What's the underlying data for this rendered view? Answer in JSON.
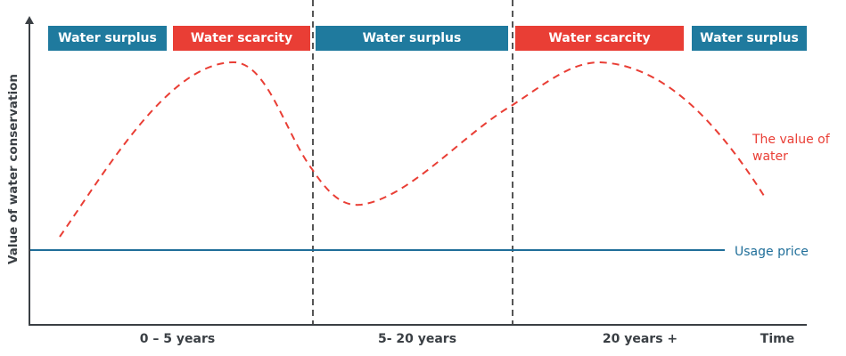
{
  "diagram": {
    "y_axis_label": "Value of water conservation",
    "x_axis_label": "Time",
    "periods": [
      "0 – 5 years",
      "5- 20 years",
      "20 years +"
    ],
    "banners": [
      {
        "label": "Water surplus",
        "kind": "surplus"
      },
      {
        "label": "Water scarcity",
        "kind": "scarcity"
      },
      {
        "label": "Water surplus",
        "kind": "surplus"
      },
      {
        "label": "Water scarcity",
        "kind": "scarcity"
      },
      {
        "label": "Water surplus",
        "kind": "surplus"
      }
    ],
    "curve_label": "The value of water",
    "line_label": "Usage price",
    "colors": {
      "surplus": "#1f7a9e",
      "scarcity": "#e93e35",
      "curve": "#e93e35",
      "usage_price": "#1f6e99",
      "axis": "#3a3f44"
    }
  }
}
